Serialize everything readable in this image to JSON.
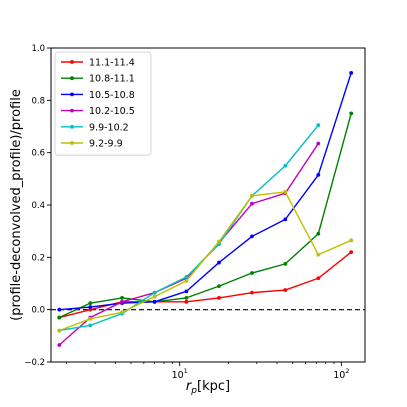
{
  "chart_data": {
    "type": "line",
    "xlabel": "r_p[kpc]",
    "ylabel": "(profile-deconvolved_profile)/profile",
    "xscale": "log",
    "xlim": [
      1.6,
      140
    ],
    "ylim": [
      -0.2,
      1.0
    ],
    "grid": false,
    "legend_position": "top-left",
    "reference_line": {
      "y": 0,
      "style": "dashed",
      "color": "#000000"
    },
    "x_ticks": [
      {
        "value": 10,
        "base": "10",
        "exp": "1"
      },
      {
        "value": 100,
        "base": "10",
        "exp": "2"
      }
    ],
    "y_ticks": [
      {
        "value": -0.2,
        "label": "−0.2"
      },
      {
        "value": 0.0,
        "label": "0.0"
      },
      {
        "value": 0.2,
        "label": "0.2"
      },
      {
        "value": 0.4,
        "label": "0.4"
      },
      {
        "value": 0.6,
        "label": "0.6"
      },
      {
        "value": 0.8,
        "label": "0.8"
      },
      {
        "value": 1.0,
        "label": "1.0"
      }
    ],
    "series": [
      {
        "name": "11.1-11.4",
        "color": "#ff0000",
        "x": [
          1.8,
          2.8,
          4.4,
          7.0,
          11.0,
          17.5,
          28.0,
          45.0,
          72.0,
          115.0
        ],
        "y": [
          -0.03,
          0.0,
          0.03,
          0.03,
          0.03,
          0.045,
          0.065,
          0.075,
          0.12,
          0.22
        ]
      },
      {
        "name": "10.8-11.1",
        "color": "#008000",
        "x": [
          1.8,
          2.8,
          4.4,
          7.0,
          11.0,
          17.5,
          28.0,
          45.0,
          72.0,
          115.0
        ],
        "y": [
          -0.03,
          0.025,
          0.045,
          0.03,
          0.045,
          0.09,
          0.14,
          0.175,
          0.29,
          0.75
        ]
      },
      {
        "name": "10.5-10.8",
        "color": "#0000ff",
        "x": [
          1.8,
          2.8,
          4.4,
          7.0,
          11.0,
          17.5,
          28.0,
          45.0,
          72.0,
          115.0
        ],
        "y": [
          0.0,
          0.01,
          0.025,
          0.03,
          0.07,
          0.18,
          0.28,
          0.345,
          0.515,
          0.905
        ]
      },
      {
        "name": "10.2-10.5",
        "color": "#c000c0",
        "x": [
          1.8,
          2.8,
          4.4,
          7.0,
          11.0,
          17.5,
          28.0,
          45.0,
          72.0
        ],
        "y": [
          -0.135,
          -0.03,
          0.03,
          0.065,
          0.12,
          0.255,
          0.405,
          0.445,
          0.635
        ]
      },
      {
        "name": "9.9-10.2",
        "color": "#00c0c0",
        "x": [
          1.8,
          2.8,
          4.4,
          7.0,
          11.0,
          17.5,
          28.0,
          45.0,
          72.0
        ],
        "y": [
          -0.08,
          -0.06,
          -0.015,
          0.065,
          0.125,
          0.25,
          0.435,
          0.55,
          0.705
        ]
      },
      {
        "name": "9.2-9.9",
        "color": "#bfbf00",
        "x": [
          1.8,
          2.8,
          4.4,
          7.0,
          11.0,
          17.5,
          28.0,
          45.0,
          72.0,
          115.0
        ],
        "y": [
          -0.08,
          -0.035,
          -0.01,
          0.05,
          0.11,
          0.26,
          0.435,
          0.45,
          0.21,
          0.265
        ]
      }
    ]
  }
}
